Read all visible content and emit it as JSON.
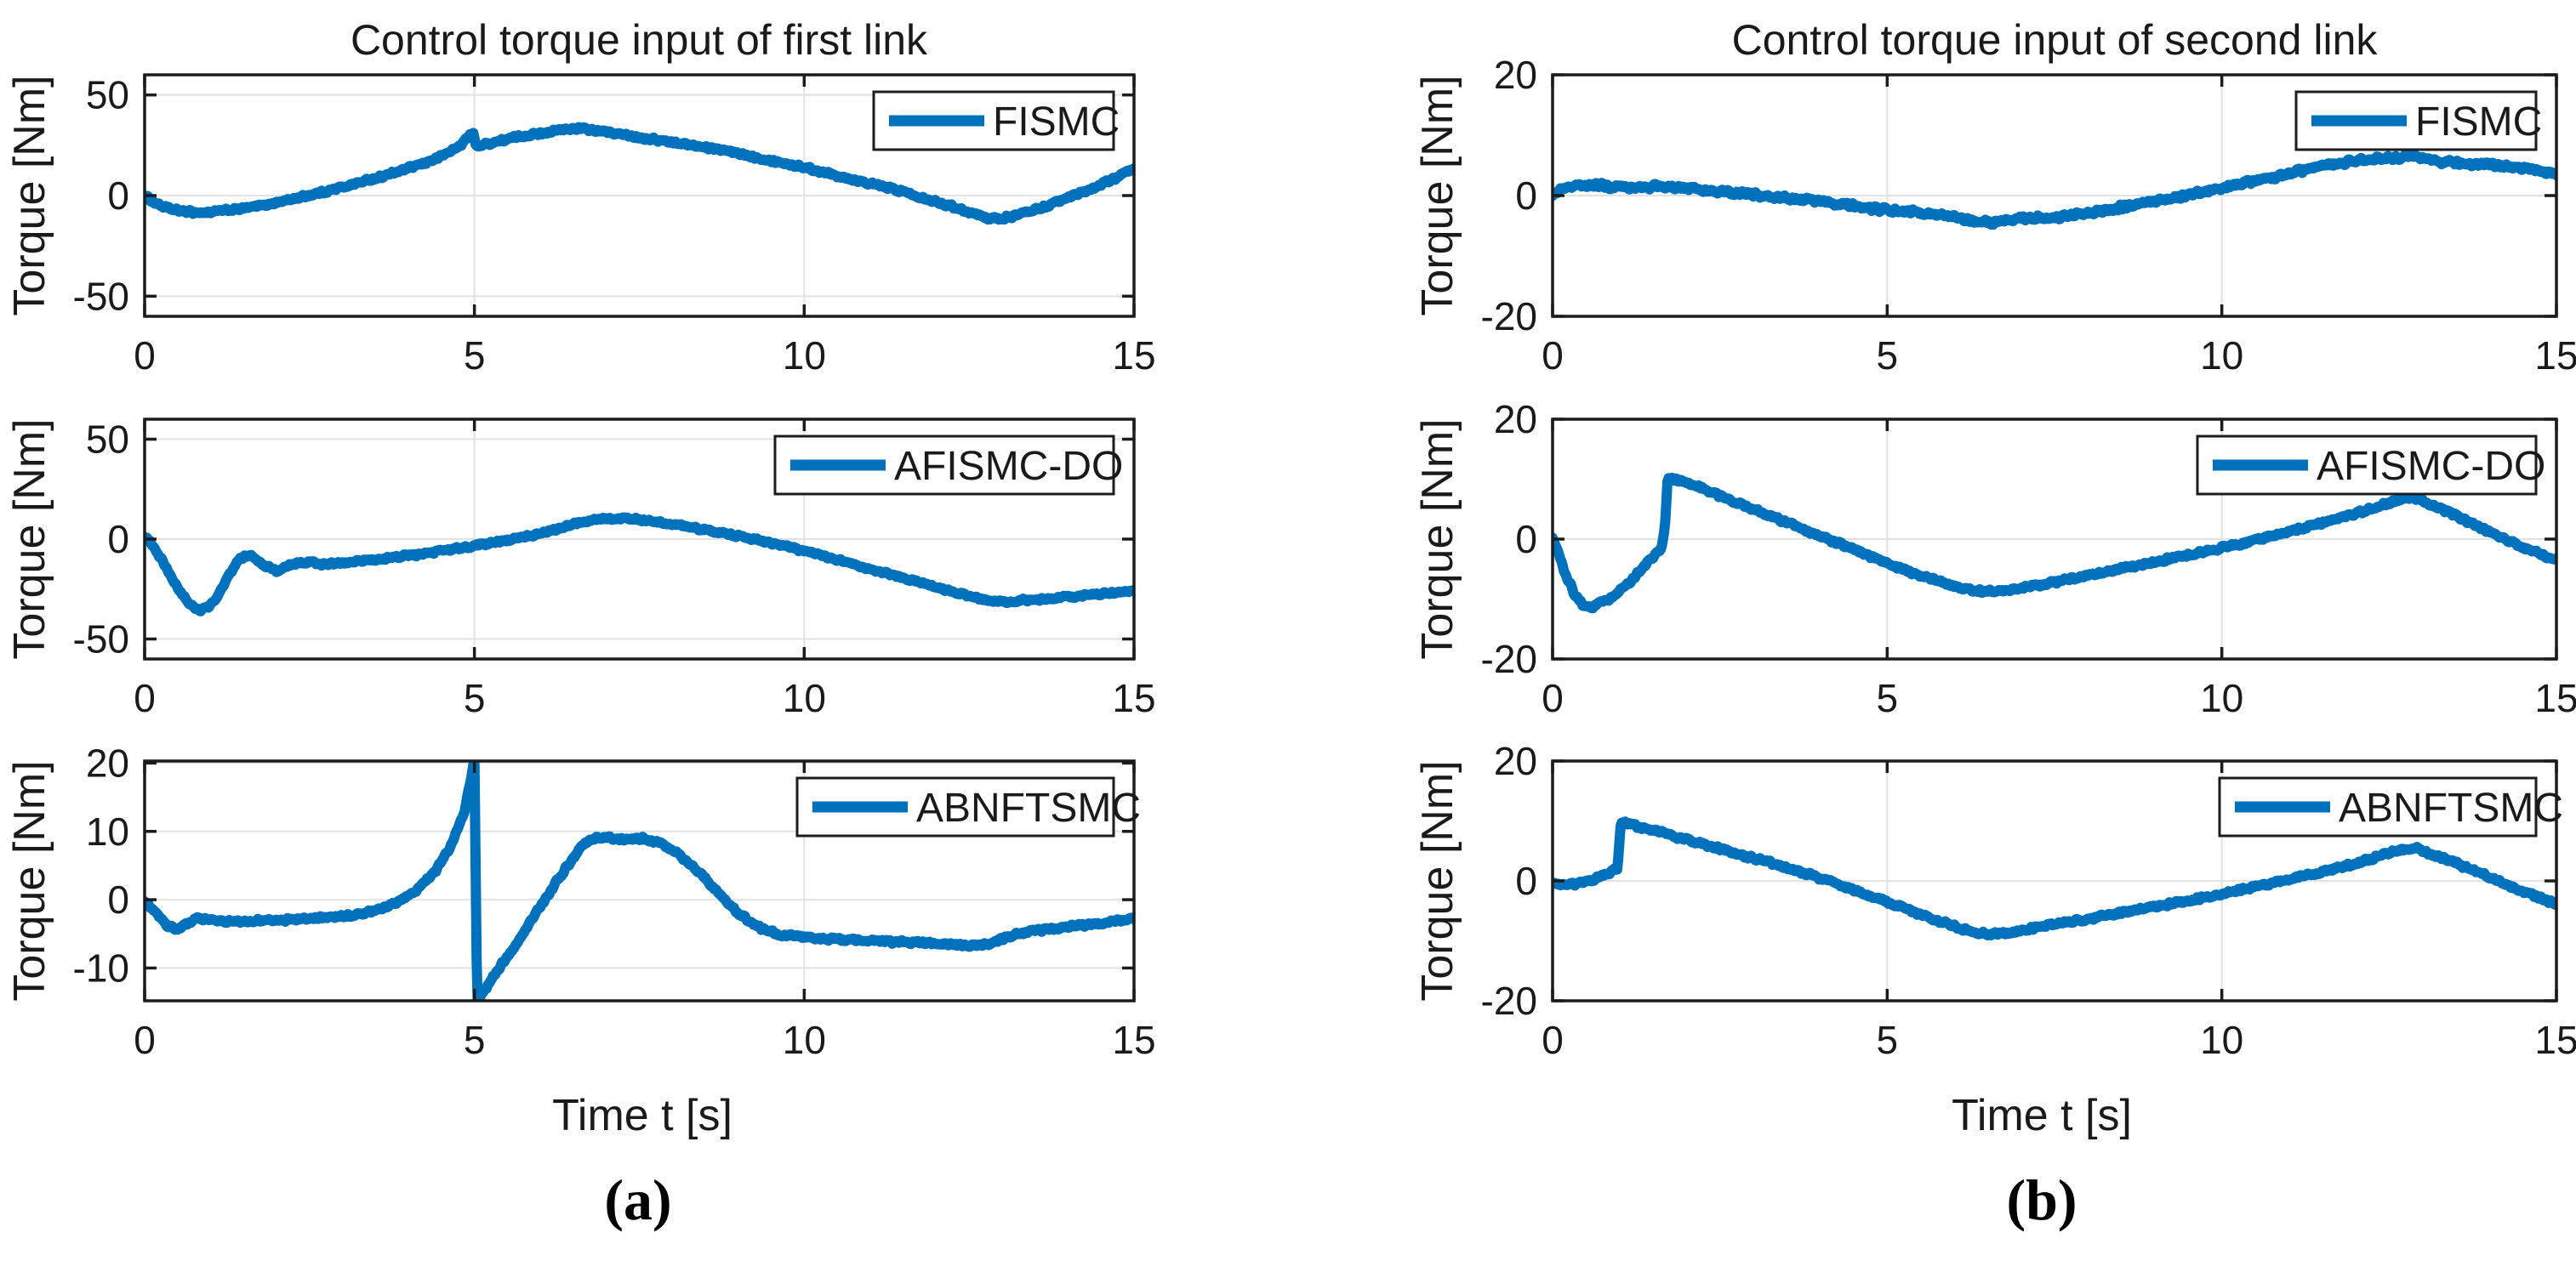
{
  "figure": {
    "captions": {
      "a": "(a)",
      "b": "(b)"
    },
    "line_color": "#0072BD",
    "grid_color": "#e2e2e2",
    "axis_color": "#1c1c1c",
    "text_color": "#1a1a1a",
    "background": "#ffffff"
  },
  "chart_data": [
    {
      "id": "a1",
      "type": "line",
      "title": "Control torque input of first link",
      "xlabel": "",
      "ylabel": "Torque [Nm]",
      "xlim": [
        0,
        15
      ],
      "ylim": [
        -60,
        60
      ],
      "xticks": [
        0,
        5,
        10,
        15
      ],
      "yticks": [
        50,
        0,
        -50
      ],
      "grid": true,
      "legend_position": "top-right",
      "series": [
        {
          "name": "FISMC",
          "color": "#0072BD",
          "noise": 1.0,
          "x": [
            0,
            0.15,
            0.35,
            0.6,
            0.9,
            1.2,
            1.6,
            2.0,
            2.4,
            2.8,
            3.2,
            3.6,
            4.0,
            4.4,
            4.75,
            4.98,
            5.02,
            5.3,
            5.7,
            6.0,
            6.3,
            6.55,
            6.8,
            7.2,
            7.6,
            8.0,
            8.5,
            9.0,
            9.5,
            10.0,
            10.5,
            11.0,
            11.5,
            12.0,
            12.4,
            12.75,
            13.0,
            13.3,
            13.7,
            14.1,
            14.5,
            15.0
          ],
          "y": [
            0,
            -3.5,
            -6.5,
            -8,
            -8.5,
            -7.5,
            -6,
            -3.5,
            -0.5,
            2.5,
            6,
            9.5,
            13.5,
            18,
            24,
            31.5,
            24.5,
            26.5,
            29.5,
            31,
            32.5,
            33.5,
            32.5,
            30.5,
            28.5,
            26.5,
            24,
            21,
            17.5,
            14,
            10,
            6,
            2,
            -3,
            -7,
            -11,
            -11.5,
            -9,
            -5,
            0,
            5.5,
            13
          ]
        }
      ]
    },
    {
      "id": "a2",
      "type": "line",
      "title": "",
      "xlabel": "",
      "ylabel": "Torque [Nm]",
      "xlim": [
        0,
        15
      ],
      "ylim": [
        -60,
        60
      ],
      "xticks": [
        0,
        5,
        10,
        15
      ],
      "yticks": [
        50,
        0,
        -50
      ],
      "grid": true,
      "legend_position": "top-right",
      "series": [
        {
          "name": "AFISMC-DO",
          "color": "#0072BD",
          "noise": 0.9,
          "x": [
            0,
            0.08,
            0.25,
            0.45,
            0.65,
            0.82,
            1.0,
            1.15,
            1.3,
            1.45,
            1.6,
            1.8,
            2.0,
            2.2,
            2.45,
            2.7,
            3.0,
            3.4,
            3.8,
            4.2,
            4.6,
            5.0,
            5.4,
            5.8,
            6.2,
            6.5,
            6.8,
            7.1,
            7.4,
            7.8,
            8.2,
            8.6,
            9.0,
            9.5,
            10.0,
            10.5,
            11.0,
            11.5,
            12.0,
            12.5,
            12.9,
            13.2,
            13.6,
            14.0,
            14.5,
            15.0
          ],
          "y": [
            1.5,
            -1,
            -10,
            -22,
            -31,
            -36,
            -33,
            -26,
            -17,
            -9.5,
            -8,
            -13,
            -16,
            -13,
            -11.5,
            -12.5,
            -12,
            -10.5,
            -9,
            -7.5,
            -5.5,
            -3.5,
            -1,
            1.5,
            4.5,
            7.5,
            9.5,
            10.5,
            10,
            8.5,
            6.5,
            4,
            1.5,
            -2,
            -6,
            -10.5,
            -15,
            -19.5,
            -24,
            -28.5,
            -31.5,
            -31,
            -30,
            -29,
            -27.5,
            -26
          ]
        }
      ]
    },
    {
      "id": "a3",
      "type": "line",
      "title": "",
      "xlabel": "Time t [s]",
      "ylabel": "Torque [Nm]",
      "xlim": [
        0,
        15
      ],
      "ylim": [
        -14.8,
        20.3
      ],
      "xticks": [
        0,
        5,
        10,
        15
      ],
      "yticks": [
        20,
        10,
        0,
        -10
      ],
      "grid": true,
      "legend_position": "top-right",
      "series": [
        {
          "name": "ABNFTSMC",
          "color": "#0072BD",
          "noise": 0.3,
          "x": [
            0,
            0.15,
            0.35,
            0.5,
            0.65,
            0.8,
            1.0,
            1.3,
            1.7,
            2.1,
            2.5,
            2.9,
            3.2,
            3.5,
            3.8,
            4.1,
            4.4,
            4.65,
            4.85,
            5.0,
            5.04,
            5.3,
            5.6,
            5.9,
            6.2,
            6.45,
            6.65,
            6.85,
            7.1,
            7.35,
            7.55,
            7.8,
            8.1,
            8.4,
            8.7,
            9.0,
            9.3,
            9.6,
            10.0,
            10.5,
            11.0,
            11.5,
            12.0,
            12.4,
            12.7,
            12.95,
            13.2,
            13.5,
            14.0,
            14.5,
            15.0
          ],
          "y": [
            0,
            -1.8,
            -3.8,
            -4.3,
            -3.5,
            -2.7,
            -3.0,
            -3.2,
            -3.1,
            -3.0,
            -2.8,
            -2.5,
            -2.2,
            -1.6,
            -0.6,
            1.2,
            4.0,
            8.0,
            13.0,
            20.5,
            -15.0,
            -11.0,
            -7.0,
            -2.5,
            2.0,
            5.5,
            8.0,
            9.2,
            9.0,
            8.8,
            9.0,
            8.4,
            6.6,
            4.0,
            1.0,
            -2.0,
            -4.0,
            -5.0,
            -5.5,
            -5.8,
            -6.0,
            -6.2,
            -6.4,
            -6.6,
            -6.7,
            -6.0,
            -5.0,
            -4.5,
            -4.0,
            -3.4,
            -2.8
          ]
        }
      ]
    },
    {
      "id": "b1",
      "type": "line",
      "title": "Control torque input of second link",
      "xlabel": "",
      "ylabel": "Torque [Nm]",
      "xlim": [
        0,
        15
      ],
      "ylim": [
        -20,
        20
      ],
      "xticks": [
        0,
        5,
        10,
        15
      ],
      "yticks": [
        20,
        0,
        -20
      ],
      "grid": true,
      "legend_position": "top-right",
      "series": [
        {
          "name": "FISMC",
          "color": "#0072BD",
          "noise": 0.5,
          "x": [
            0,
            0.2,
            0.4,
            0.6,
            0.9,
            1.2,
            1.5,
            1.9,
            2.3,
            2.7,
            3.1,
            3.5,
            4.0,
            4.5,
            5.0,
            5.5,
            6.0,
            6.3,
            6.55,
            6.8,
            7.1,
            7.4,
            7.7,
            8.1,
            8.5,
            9.0,
            9.5,
            10.0,
            10.5,
            11.0,
            11.4,
            11.8,
            12.1,
            12.4,
            12.65,
            12.8,
            13.0,
            13.3,
            13.6,
            14.0,
            14.4,
            14.7,
            15.0
          ],
          "y": [
            0.2,
            1.2,
            1.7,
            1.8,
            1.5,
            1.3,
            1.5,
            1.3,
            0.9,
            0.5,
            0.1,
            -0.4,
            -1.0,
            -1.7,
            -2.4,
            -2.9,
            -3.5,
            -4.2,
            -4.6,
            -3.9,
            -3.6,
            -3.8,
            -3.4,
            -2.7,
            -1.9,
            -0.9,
            0.1,
            1.2,
            2.4,
            3.7,
            4.7,
            5.5,
            5.9,
            6.1,
            6.3,
            6.8,
            6.2,
            5.6,
            5.3,
            5.1,
            4.6,
            4.3,
            3.3
          ]
        }
      ]
    },
    {
      "id": "b2",
      "type": "line",
      "title": "",
      "xlabel": "",
      "ylabel": "Torque [Nm]",
      "xlim": [
        0,
        15
      ],
      "ylim": [
        -20,
        20
      ],
      "xticks": [
        0,
        5,
        10,
        15
      ],
      "yticks": [
        20,
        0,
        -20
      ],
      "grid": true,
      "legend_position": "top-right",
      "series": [
        {
          "name": "AFISMC-DO",
          "color": "#0072BD",
          "noise": 0.35,
          "x": [
            0,
            0.06,
            0.18,
            0.32,
            0.45,
            0.58,
            0.72,
            0.85,
            1.0,
            1.12,
            1.25,
            1.38,
            1.5,
            1.58,
            1.63,
            1.68,
            1.72,
            1.9,
            2.1,
            2.4,
            2.7,
            3.0,
            3.4,
            3.8,
            4.2,
            4.6,
            5.0,
            5.4,
            5.8,
            6.1,
            6.35,
            6.6,
            6.85,
            7.1,
            7.4,
            7.8,
            8.2,
            8.6,
            9.0,
            9.5,
            10.0,
            10.5,
            11.0,
            11.5,
            12.0,
            12.35,
            12.65,
            12.85,
            13.1,
            13.4,
            13.8,
            14.2,
            14.6,
            15.0
          ],
          "y": [
            0.5,
            -1.5,
            -5.5,
            -9,
            -11,
            -11.5,
            -10.5,
            -10,
            -8.5,
            -7.5,
            -6,
            -4.5,
            -3,
            -2.2,
            -1.5,
            2,
            10.3,
            9.8,
            9.0,
            7.7,
            6.3,
            5.0,
            3.2,
            1.4,
            -0.4,
            -2.2,
            -4.0,
            -5.7,
            -7.2,
            -8.1,
            -8.6,
            -8.8,
            -8.5,
            -8.0,
            -7.4,
            -6.5,
            -5.6,
            -4.7,
            -3.8,
            -2.7,
            -1.5,
            -0.2,
            1.2,
            2.7,
            4.2,
            5.5,
            6.6,
            7.0,
            5.8,
            4.4,
            2.2,
            0.2,
            -1.8,
            -3.5
          ]
        }
      ]
    },
    {
      "id": "b3",
      "type": "line",
      "title": "",
      "xlabel": "Time t [s]",
      "ylabel": "Torque [Nm]",
      "xlim": [
        0,
        15
      ],
      "ylim": [
        -20,
        20
      ],
      "xticks": [
        0,
        5,
        10,
        15
      ],
      "yticks": [
        20,
        0,
        -20
      ],
      "grid": true,
      "legend_position": "top-right",
      "series": [
        {
          "name": "ABNFTSMC",
          "color": "#0072BD",
          "noise": 0.35,
          "x": [
            0,
            0.2,
            0.4,
            0.6,
            0.75,
            0.9,
            0.97,
            1.02,
            1.1,
            1.3,
            1.6,
            1.9,
            2.2,
            2.6,
            3.0,
            3.4,
            3.8,
            4.2,
            4.6,
            5.0,
            5.4,
            5.8,
            6.1,
            6.35,
            6.55,
            6.75,
            7.0,
            7.3,
            7.7,
            8.1,
            8.5,
            9.0,
            9.5,
            10.0,
            10.5,
            11.0,
            11.5,
            12.0,
            12.35,
            12.65,
            12.9,
            13.15,
            13.45,
            13.8,
            14.2,
            14.6,
            15.0
          ],
          "y": [
            -0.4,
            -0.6,
            -0.4,
            0.2,
            0.9,
            1.7,
            2.2,
            9.8,
            9.6,
            9.0,
            8.2,
            7.2,
            6.3,
            5.0,
            3.8,
            2.6,
            1.2,
            -0.3,
            -1.9,
            -3.6,
            -5.2,
            -6.8,
            -7.9,
            -8.6,
            -8.9,
            -8.7,
            -8.3,
            -7.7,
            -6.9,
            -6.1,
            -5.3,
            -4.3,
            -3.3,
            -2.2,
            -1.0,
            0.2,
            1.5,
            2.9,
            4.1,
            5.2,
            5.5,
            4.4,
            3.2,
            1.6,
            -0.4,
            -2.2,
            -3.9
          ]
        }
      ]
    }
  ]
}
